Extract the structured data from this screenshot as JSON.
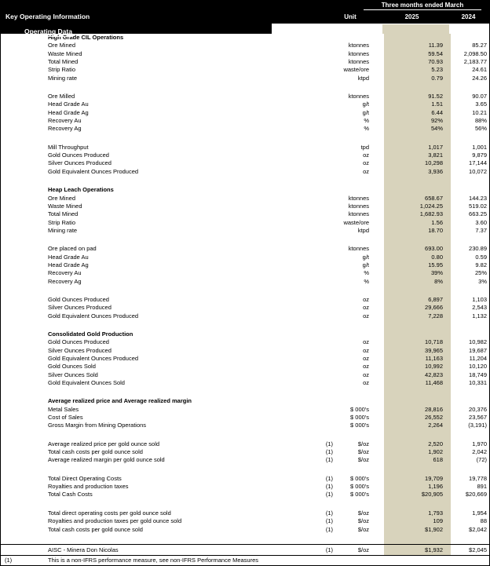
{
  "colors": {
    "band": "#d8d3bc",
    "header_bg": "#000000",
    "header_fg": "#ffffff"
  },
  "header": {
    "period_label": "Three months ended March",
    "title": "Key Operating Information",
    "unit_label": "Unit",
    "col_2025": "2025",
    "col_2024": "2024",
    "subtitle": "Operating Data"
  },
  "blocks": [
    {
      "title": "High Grade CIL Operations",
      "rows": [
        {
          "label": "Ore Mined",
          "note": "",
          "unit": "ktonnes",
          "v2025": "11.39",
          "v2024": "85.27"
        },
        {
          "label": "Waste Mined",
          "note": "",
          "unit": "ktonnes",
          "v2025": "59.54",
          "v2024": "2,098.50"
        },
        {
          "label": "Total Mined",
          "note": "",
          "unit": "ktonnes",
          "v2025": "70.93",
          "v2024": "2,183.77"
        },
        {
          "label": "Strip Ratio",
          "note": "",
          "unit": "waste/ore",
          "v2025": "5.23",
          "v2024": "24.61"
        },
        {
          "label": "Mining rate",
          "note": "",
          "unit": "ktpd",
          "v2025": "0.79",
          "v2024": "24.26"
        }
      ]
    },
    {
      "title": "",
      "rows": [
        {
          "label": "Ore Milled",
          "note": "",
          "unit": "ktonnes",
          "v2025": "91.52",
          "v2024": "90.07"
        },
        {
          "label": "Head Grade Au",
          "note": "",
          "unit": "g/t",
          "v2025": "1.51",
          "v2024": "3.65"
        },
        {
          "label": "Head Grade Ag",
          "note": "",
          "unit": "g/t",
          "v2025": "6.44",
          "v2024": "10.21"
        },
        {
          "label": "Recovery Au",
          "note": "",
          "unit": "%",
          "v2025": "92%",
          "v2024": "88%"
        },
        {
          "label": "Recovery Ag",
          "note": "",
          "unit": "%",
          "v2025": "54%",
          "v2024": "56%"
        }
      ]
    },
    {
      "title": "",
      "rows": [
        {
          "label": "Mill Throughput",
          "note": "",
          "unit": "tpd",
          "v2025": "1,017",
          "v2024": "1,001"
        },
        {
          "label": "Gold Ounces Produced",
          "note": "",
          "unit": "oz",
          "v2025": "3,821",
          "v2024": "9,879"
        },
        {
          "label": "Silver Ounces Produced",
          "note": "",
          "unit": "oz",
          "v2025": "10,298",
          "v2024": "17,144"
        },
        {
          "label": "Gold Equivalent Ounces Produced",
          "note": "",
          "unit": "oz",
          "v2025": "3,936",
          "v2024": "10,072"
        }
      ]
    },
    {
      "title": "Heap Leach Operations",
      "rows": [
        {
          "label": "Ore Mined",
          "note": "",
          "unit": "ktonnes",
          "v2025": "658.67",
          "v2024": "144.23"
        },
        {
          "label": "Waste Mined",
          "note": "",
          "unit": "ktonnes",
          "v2025": "1,024.25",
          "v2024": "519.02"
        },
        {
          "label": "Total Mined",
          "note": "",
          "unit": "ktonnes",
          "v2025": "1,682.93",
          "v2024": "663.25"
        },
        {
          "label": "Strip Ratio",
          "note": "",
          "unit": "waste/ore",
          "v2025": "1.56",
          "v2024": "3.60"
        },
        {
          "label": "Mining rate",
          "note": "",
          "unit": "ktpd",
          "v2025": "18.70",
          "v2024": "7.37"
        }
      ]
    },
    {
      "title": "",
      "rows": [
        {
          "label": "Ore placed on pad",
          "note": "",
          "unit": "ktonnes",
          "v2025": "693.00",
          "v2024": "230.89"
        },
        {
          "label": "Head Grade Au",
          "note": "",
          "unit": "g/t",
          "v2025": "0.80",
          "v2024": "0.59"
        },
        {
          "label": "Head Grade Ag",
          "note": "",
          "unit": "g/t",
          "v2025": "15.95",
          "v2024": "9.82"
        },
        {
          "label": "Recovery Au",
          "note": "",
          "unit": "%",
          "v2025": "39%",
          "v2024": "25%"
        },
        {
          "label": "Recovery Ag",
          "note": "",
          "unit": "%",
          "v2025": "8%",
          "v2024": "3%"
        }
      ]
    },
    {
      "title": "",
      "rows": [
        {
          "label": "Gold Ounces Produced",
          "note": "",
          "unit": "oz",
          "v2025": "6,897",
          "v2024": "1,103"
        },
        {
          "label": "Silver Ounces Produced",
          "note": "",
          "unit": "oz",
          "v2025": "29,666",
          "v2024": "2,543"
        },
        {
          "label": "Gold Equivalent Ounces Produced",
          "note": "",
          "unit": "oz",
          "v2025": "7,228",
          "v2024": "1,132"
        }
      ]
    },
    {
      "title": "Consolidated Gold Production",
      "rows": [
        {
          "label": "Gold Ounces Produced",
          "note": "",
          "unit": "oz",
          "v2025": "10,718",
          "v2024": "10,982"
        },
        {
          "label": "Silver Ounces Produced",
          "note": "",
          "unit": "oz",
          "v2025": "39,965",
          "v2024": "19,687"
        },
        {
          "label": "Gold Equivalent Ounces Produced",
          "note": "",
          "unit": "oz",
          "v2025": "11,163",
          "v2024": "11,204"
        },
        {
          "label": "Gold Ounces Sold",
          "note": "",
          "unit": "oz",
          "v2025": "10,992",
          "v2024": "10,120"
        },
        {
          "label": "Silver Ounces Sold",
          "note": "",
          "unit": "oz",
          "v2025": "42,823",
          "v2024": "18,749"
        },
        {
          "label": "Gold Equivalent Ounces Sold",
          "note": "",
          "unit": "oz",
          "v2025": "11,468",
          "v2024": "10,331"
        }
      ]
    },
    {
      "title": "Average realized price and Average realized margin",
      "rows": [
        {
          "label": "Metal Sales",
          "note": "",
          "unit": "$ 000's",
          "v2025": "28,816",
          "v2024": "20,376"
        },
        {
          "label": "Cost of Sales",
          "note": "",
          "unit": "$ 000's",
          "v2025": "26,552",
          "v2024": "23,567"
        },
        {
          "label": "Gross Margin from Mining Operations",
          "note": "",
          "unit": "$ 000's",
          "v2025": "2,264",
          "v2024": "(3,191)"
        }
      ]
    },
    {
      "title": "",
      "rows": [
        {
          "label": "Average realized price per gold ounce sold",
          "note": "(1)",
          "unit": "$/oz",
          "v2025": "2,520",
          "v2024": "1,970"
        },
        {
          "label": "Total cash costs per gold ounce sold",
          "note": "(1)",
          "unit": "$/oz",
          "v2025": "1,902",
          "v2024": "2,042"
        },
        {
          "label": "Average realized margin per gold ounce sold",
          "note": "(1)",
          "unit": "$/oz",
          "v2025": "618",
          "v2024": "(72)"
        }
      ]
    },
    {
      "title": "",
      "rows": [
        {
          "label": "Total Direct Operating Costs",
          "note": "(1)",
          "unit": "$ 000's",
          "v2025": "19,709",
          "v2024": "19,778"
        },
        {
          "label": "Royalties and production taxes",
          "note": "(1)",
          "unit": "$ 000's",
          "v2025": "1,196",
          "v2024": "891"
        },
        {
          "label": "Total Cash Costs",
          "note": "(1)",
          "unit": "$ 000's",
          "v2025": "$20,905",
          "v2024": "$20,669"
        }
      ]
    },
    {
      "title": "",
      "rows": [
        {
          "label": "Total direct operating costs per gold ounce sold",
          "note": "(1)",
          "unit": "$/oz",
          "v2025": "1,793",
          "v2024": "1,954"
        },
        {
          "label": "Royalties and production taxes per gold ounce sold",
          "note": "(1)",
          "unit": "$/oz",
          "v2025": "109",
          "v2024": "88"
        },
        {
          "label": "Total cash costs per gold ounce sold",
          "note": "(1)",
          "unit": "$/oz",
          "v2025": "$1,902",
          "v2024": "$2,042"
        }
      ]
    },
    {
      "title": "",
      "aisc": true,
      "rows": [
        {
          "label": "AISC - Minera Don Nicolas",
          "note": "(1)",
          "unit": "$/oz",
          "v2025": "$1,932",
          "v2024": "$2,045"
        }
      ]
    }
  ],
  "footnote": {
    "marker": "(1)",
    "text": "This is a non-IFRS performance measure, see non-IFRS Performance Measures"
  }
}
